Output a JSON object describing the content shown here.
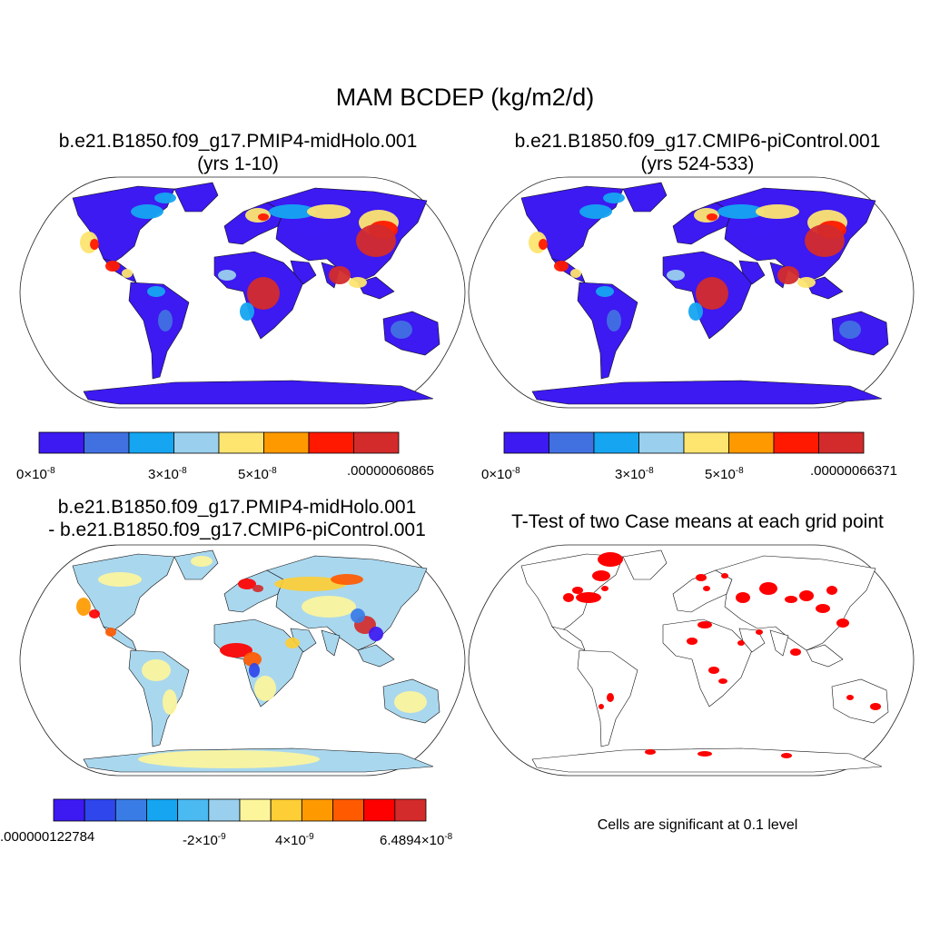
{
  "figure": {
    "title": "MAM BCDEP (kg/m2/d)",
    "note": "Cells are significant at 0.1 level"
  },
  "panels": [
    {
      "id": "p1",
      "title_line1": "b.e21.B1850.f09_g17.PMIP4-midHolo.001",
      "title_line2": "(yrs 1-10)",
      "colorbar": {
        "colors": [
          "#3d19f2",
          "#4170e0",
          "#15a5f1",
          "#9acfed",
          "#fde570",
          "#fe9a00",
          "#ff1900",
          "#d32b2b"
        ],
        "labels": [
          {
            "mant": "0",
            "exp": "-8"
          },
          {
            "mant": "3",
            "exp": "-8"
          },
          {
            "mant": "5",
            "exp": "-8"
          },
          {
            "text": ".00000060865"
          }
        ]
      }
    },
    {
      "id": "p2",
      "title_line1": "b.e21.B1850.f09_g17.CMIP6-piControl.001",
      "title_line2": "(yrs 524-533)",
      "colorbar": {
        "colors": [
          "#3d19f2",
          "#4170e0",
          "#15a5f1",
          "#9acfed",
          "#fde570",
          "#fe9a00",
          "#ff1900",
          "#d32b2b"
        ],
        "labels": [
          {
            "mant": "0",
            "exp": "-8"
          },
          {
            "mant": "3",
            "exp": "-8"
          },
          {
            "mant": "5",
            "exp": "-8"
          },
          {
            "text": ".00000066371"
          }
        ]
      }
    },
    {
      "id": "p3",
      "title_line1": "b.e21.B1850.f09_g17.PMIP4-midHolo.001",
      "title_line2": "- b.e21.B1850.f09_g17.CMIP6-piControl.001",
      "colorbar": {
        "colors": [
          "#3d19f2",
          "#2e46ec",
          "#3a7ce6",
          "#15a5f1",
          "#4bbaf0",
          "#9acfed",
          "#fdf59c",
          "#fdce35",
          "#fe9a00",
          "#ff5a00",
          "#ff0000",
          "#d32b2b"
        ],
        "labels": [
          {
            "text": ".000000122784"
          },
          {
            "mant": "-2",
            "exp": "-9"
          },
          {
            "mant": "4",
            "exp": "-9"
          },
          {
            "mant": "6.4894",
            "exp": "-8"
          }
        ]
      }
    },
    {
      "id": "p4",
      "title_line1": "T-Test of two Case means at each grid point"
    }
  ],
  "colors": {
    "continent_fill_p1": "#3d19f2",
    "significance_color": "#ff0000",
    "difference_base": "#a9d7ee",
    "ocean": "#ffffff"
  }
}
